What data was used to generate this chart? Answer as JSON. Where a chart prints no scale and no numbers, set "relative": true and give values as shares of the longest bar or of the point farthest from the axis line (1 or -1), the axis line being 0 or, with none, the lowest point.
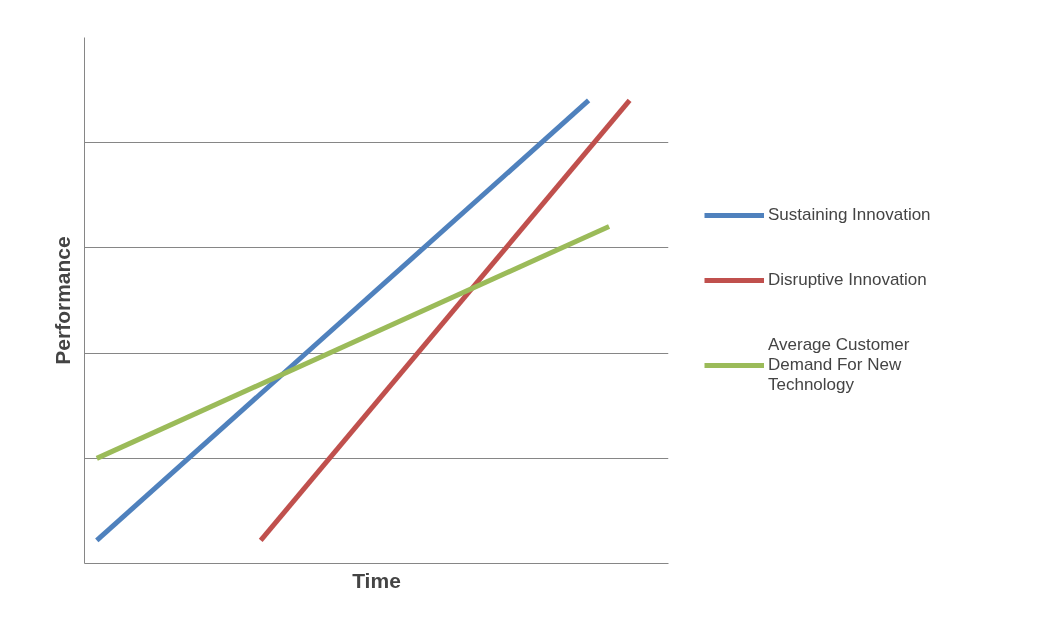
{
  "chart_data": {
    "type": "line",
    "xlabel": "Time",
    "ylabel": "Performance",
    "relative": true,
    "tick_labels": false,
    "grid": "y",
    "legend": "right",
    "marker": "none",
    "line_style": "solid",
    "categories": [
      null,
      null,
      null,
      null,
      null,
      null,
      null,
      null,
      null,
      null,
      null,
      null,
      null,
      null,
      null,
      null,
      null,
      null,
      null,
      null,
      null,
      null,
      null,
      null,
      null,
      null,
      null
    ],
    "series": [
      {
        "name": "Sustaining Innovation",
        "color": "#4f81bd",
        "values": [
          0.05,
          null,
          null,
          null,
          null,
          null,
          null,
          null,
          null,
          null,
          null,
          null,
          null,
          null,
          null,
          null,
          null,
          null,
          null,
          null,
          null,
          null,
          null,
          null,
          1,
          null,
          null
        ]
      },
      {
        "name": "Disruptive Innovation",
        "color": "#c0504d",
        "values": [
          null,
          null,
          null,
          null,
          null,
          null,
          null,
          null,
          0.05,
          null,
          null,
          null,
          null,
          null,
          null,
          null,
          null,
          null,
          null,
          null,
          null,
          null,
          null,
          null,
          null,
          null,
          1
        ]
      },
      {
        "name": "Average Customer Demand For New Technology",
        "color": "#9bbb59",
        "values": [
          0.227,
          null,
          null,
          null,
          null,
          null,
          null,
          null,
          null,
          null,
          null,
          null,
          null,
          null,
          null,
          null,
          null,
          null,
          null,
          null,
          null,
          null,
          null,
          null,
          null,
          0.728,
          null
        ]
      }
    ]
  }
}
